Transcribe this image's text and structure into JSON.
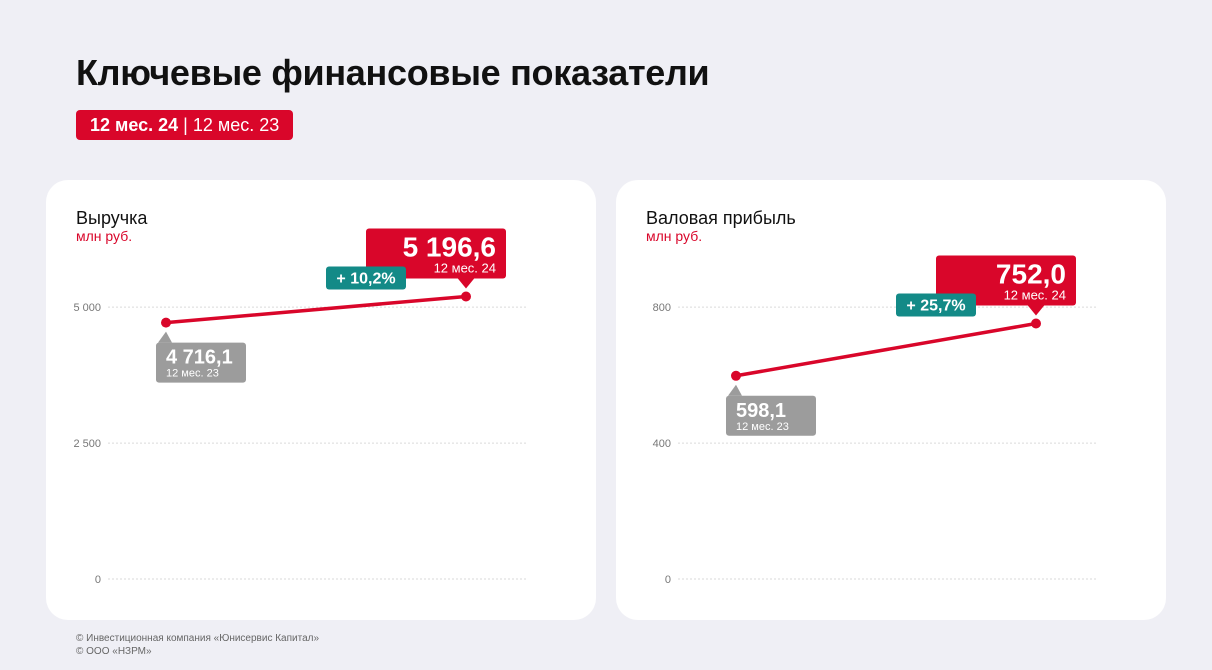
{
  "page": {
    "title": "Ключевые финансовые показатели",
    "period_current": "12 мес. 24",
    "period_separator": "|",
    "period_previous": "12 мес. 23"
  },
  "colors": {
    "accent": "#d9062a",
    "growth": "#138a87",
    "previous": "#9c9c9c",
    "grid": "#dadada"
  },
  "footer": {
    "line1": "© Инвестиционная компания «Юнисервис Капитал»",
    "line2": "© ООО «НЗРМ»"
  },
  "chart_data": [
    {
      "type": "line",
      "title": "Выручка",
      "subtitle": "млн руб.",
      "ylim": [
        0,
        5500
      ],
      "yticks": [
        0,
        2500,
        5000
      ],
      "ytick_labels": [
        "0",
        "2 500",
        "5 000"
      ],
      "grid": true,
      "series": [
        {
          "values": [
            4716.1,
            5196.6
          ],
          "point_labels": [
            "4 716,1",
            "5 196,6"
          ],
          "point_periods": [
            "12 мес. 23",
            "12 мес. 24"
          ]
        }
      ],
      "change_label": "+ 10,2%"
    },
    {
      "type": "line",
      "title": "Валовая прибыль",
      "subtitle": "млн руб.",
      "ylim": [
        0,
        880
      ],
      "yticks": [
        0,
        400,
        800
      ],
      "ytick_labels": [
        "0",
        "400",
        "800"
      ],
      "grid": true,
      "series": [
        {
          "values": [
            598.1,
            752.0
          ],
          "point_labels": [
            "598,1",
            "752,0"
          ],
          "point_periods": [
            "12 мес. 23",
            "12 мес. 24"
          ]
        }
      ],
      "change_label": "+ 25,7%"
    }
  ]
}
